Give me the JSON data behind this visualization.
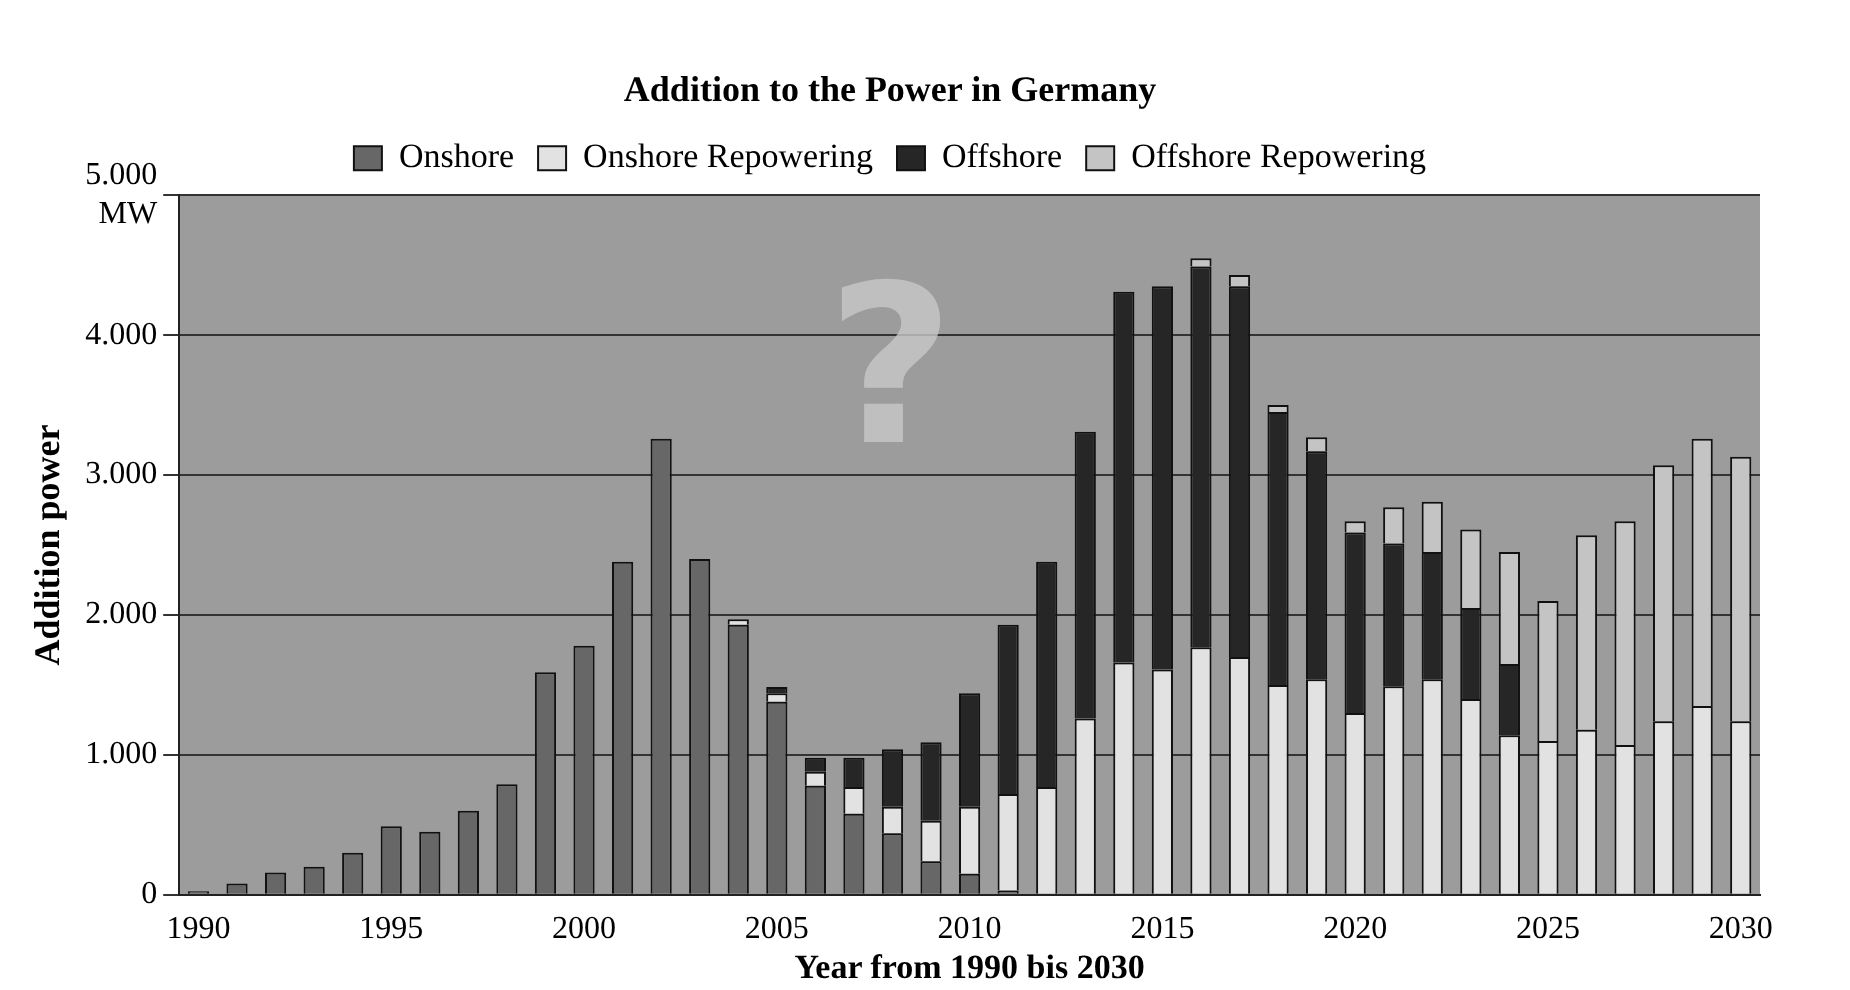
{
  "chart_data": {
    "type": "bar",
    "title": "Addition to the Power in Germany",
    "xlabel": "Year from 1990 bis 2030",
    "ylabel": "Addition power",
    "stacked": true,
    "grid": "y",
    "legend": "top",
    "categories": [
      "1990",
      null,
      null,
      null,
      null,
      "1995",
      null,
      null,
      null,
      null,
      "2000",
      null,
      null,
      null,
      null,
      "2005",
      null,
      null,
      null,
      null,
      "2010",
      null,
      null,
      null,
      null,
      "2015",
      null,
      null,
      null,
      null,
      "2020",
      null,
      null,
      null,
      null,
      "2025",
      null,
      null,
      null,
      null,
      "2030"
    ],
    "series": [
      {
        "name": "Onshore",
        "color": "#676767",
        "values": [
          25,
          80,
          160,
          200,
          300,
          490,
          450,
          600,
          790,
          1590,
          1780,
          2380,
          3260,
          2400,
          1930,
          1380,
          780,
          580,
          440,
          240,
          150,
          30,
          0,
          0,
          0,
          0,
          0,
          0,
          0,
          0,
          0,
          0,
          0,
          0,
          0,
          0,
          0,
          0,
          0,
          0,
          0
        ]
      },
      {
        "name": "Onshore Repowering",
        "color": "#e2e2e2",
        "values": [
          0,
          0,
          0,
          0,
          0,
          0,
          0,
          0,
          0,
          0,
          0,
          0,
          0,
          0,
          40,
          60,
          100,
          190,
          190,
          290,
          480,
          690,
          770,
          1260,
          1660,
          1610,
          1770,
          1700,
          1500,
          1540,
          1300,
          1490,
          1540,
          1400,
          1140,
          1100,
          1180,
          1070,
          1240,
          1350,
          1240
        ]
      },
      {
        "name": "Offshore",
        "color": "#262626",
        "values": [
          0,
          0,
          0,
          0,
          0,
          0,
          0,
          0,
          0,
          0,
          0,
          0,
          0,
          0,
          0,
          45,
          100,
          210,
          410,
          560,
          810,
          1210,
          1610,
          2050,
          2650,
          2740,
          2720,
          2650,
          1950,
          1630,
          1290,
          1020,
          910,
          650,
          510,
          0,
          0,
          0,
          0,
          0,
          0
        ]
      },
      {
        "name": "Offshore Repowering",
        "color": "#c4c4c4",
        "values": [
          0,
          0,
          0,
          0,
          0,
          0,
          0,
          0,
          0,
          0,
          0,
          0,
          0,
          0,
          0,
          0,
          0,
          0,
          0,
          0,
          0,
          0,
          0,
          0,
          0,
          0,
          60,
          80,
          50,
          100,
          80,
          260,
          360,
          560,
          800,
          1000,
          1390,
          1600,
          1830,
          1910,
          1890
        ]
      }
    ],
    "ylim": [
      0,
      5000
    ],
    "yticks": [
      {
        "value": 0,
        "label": "0"
      },
      {
        "value": 1000,
        "label": "1.000"
      },
      {
        "value": 2000,
        "label": "2.000"
      },
      {
        "value": 3000,
        "label": "3.000"
      },
      {
        "value": 4000,
        "label": "4.000"
      },
      {
        "value": 5000,
        "label": "5.000\nMW"
      }
    ],
    "annotations": [
      "?"
    ]
  }
}
